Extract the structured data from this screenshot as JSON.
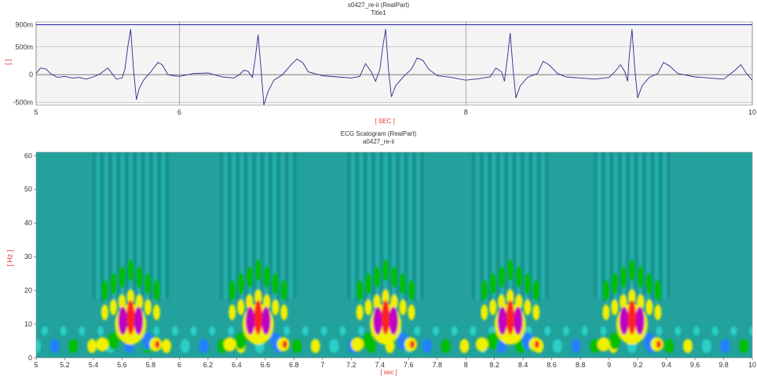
{
  "chart_data": [
    {
      "type": "line",
      "title": "s0427_re-ii (RealPart)",
      "subtitle": "Title1",
      "xlabel": "[ SEC ]",
      "ylabel": "[ ]",
      "xlim": [
        5,
        10
      ],
      "ylim": [
        -0.55,
        0.95
      ],
      "x_ticks": [
        "5",
        "6",
        "8",
        "10"
      ],
      "y_ticks": [
        "900m",
        "500m",
        "0",
        "-500m"
      ],
      "y_tick_values": [
        0.9,
        0.5,
        0,
        -0.5
      ],
      "reference_line": 0.9,
      "grid": true,
      "line_color": "#2a2a8c",
      "r_peaks": [
        5.66,
        6.55,
        7.44,
        8.31,
        9.16
      ],
      "series": [
        {
          "x": [
            5.0,
            5.03,
            5.07,
            5.1,
            5.15,
            5.2,
            5.25,
            5.3,
            5.35,
            5.4,
            5.45,
            5.5,
            5.53,
            5.56,
            5.6,
            5.62,
            5.64,
            5.66,
            5.68,
            5.7,
            5.72,
            5.75,
            5.8,
            5.85,
            5.88,
            5.92,
            5.96,
            6.0,
            6.1,
            6.2,
            6.3,
            6.38,
            6.42,
            6.45,
            6.48,
            6.51,
            6.53,
            6.55,
            6.57,
            6.59,
            6.62,
            6.66,
            6.72,
            6.78,
            6.82,
            6.86,
            6.9,
            7.0,
            7.1,
            7.2,
            7.26,
            7.3,
            7.34,
            7.37,
            7.4,
            7.42,
            7.44,
            7.46,
            7.48,
            7.51,
            7.56,
            7.62,
            7.66,
            7.7,
            7.74,
            7.8,
            7.9,
            8.0,
            8.1,
            8.17,
            8.21,
            8.25,
            8.27,
            8.29,
            8.31,
            8.33,
            8.35,
            8.38,
            8.43,
            8.5,
            8.54,
            8.58,
            8.64,
            8.7,
            8.8,
            8.9,
            9.0,
            9.04,
            9.08,
            9.11,
            9.13,
            9.14,
            9.16,
            9.18,
            9.2,
            9.23,
            9.28,
            9.34,
            9.38,
            9.42,
            9.48,
            9.6,
            9.7,
            9.8,
            9.88,
            9.92,
            9.96,
            10.0
          ],
          "y": [
            0.02,
            0.12,
            0.1,
            0.02,
            -0.05,
            -0.03,
            -0.06,
            -0.05,
            -0.08,
            -0.04,
            0.02,
            0.12,
            0.02,
            -0.08,
            -0.06,
            0.1,
            0.5,
            0.82,
            0.1,
            -0.45,
            -0.25,
            -0.1,
            0.05,
            0.22,
            0.18,
            0.0,
            -0.02,
            -0.03,
            0.02,
            0.03,
            -0.04,
            -0.06,
            0.0,
            0.08,
            0.06,
            -0.05,
            0.3,
            0.72,
            0.1,
            -0.55,
            -0.3,
            -0.1,
            0.0,
            0.18,
            0.28,
            0.22,
            0.05,
            -0.02,
            -0.04,
            -0.06,
            -0.03,
            0.2,
            0.05,
            -0.12,
            0.1,
            0.5,
            0.82,
            0.1,
            -0.4,
            -0.2,
            -0.05,
            0.1,
            0.3,
            0.26,
            0.1,
            -0.02,
            -0.05,
            -0.1,
            -0.07,
            -0.04,
            0.12,
            0.05,
            -0.12,
            0.3,
            0.75,
            0.1,
            -0.42,
            -0.2,
            -0.05,
            0.02,
            0.24,
            0.18,
            0.02,
            -0.04,
            -0.06,
            -0.08,
            -0.05,
            0.05,
            0.18,
            0.05,
            -0.12,
            0.3,
            0.82,
            0.1,
            -0.42,
            -0.2,
            -0.05,
            0.02,
            0.22,
            0.16,
            0.02,
            -0.04,
            -0.06,
            -0.08,
            0.08,
            0.18,
            0.02,
            -0.1
          ]
        }
      ]
    },
    {
      "type": "heatmap",
      "title": "ECG Scalogram (RealPart)",
      "subtitle": "a0427_re-ii",
      "xlabel": "[ sec ]",
      "ylabel": "[ Hz ]",
      "xlim": [
        5,
        10
      ],
      "ylim": [
        0,
        61
      ],
      "x_ticks": [
        "5",
        "5.2",
        "5.4",
        "5.6",
        "5.8",
        "6",
        "6.2",
        "6.4",
        "6.6",
        "6.8",
        "7",
        "7.2",
        "7.4",
        "7.6",
        "7.8",
        "8",
        "8.2",
        "8.4",
        "8.6",
        "8.8",
        "9",
        "9.2",
        "9.4",
        "9.6",
        "9.8",
        "10"
      ],
      "y_ticks": [
        "0",
        "10",
        "20",
        "30",
        "40",
        "50",
        "60"
      ],
      "event_times": [
        5.66,
        6.55,
        7.44,
        8.31,
        9.16
      ],
      "colormap": [
        "#1f9a9a",
        "#2ad0c8",
        "#2080ff",
        "#00c000",
        "#f0f000",
        "#ff2020",
        "#c000c0"
      ],
      "background": "#23a29e"
    }
  ]
}
